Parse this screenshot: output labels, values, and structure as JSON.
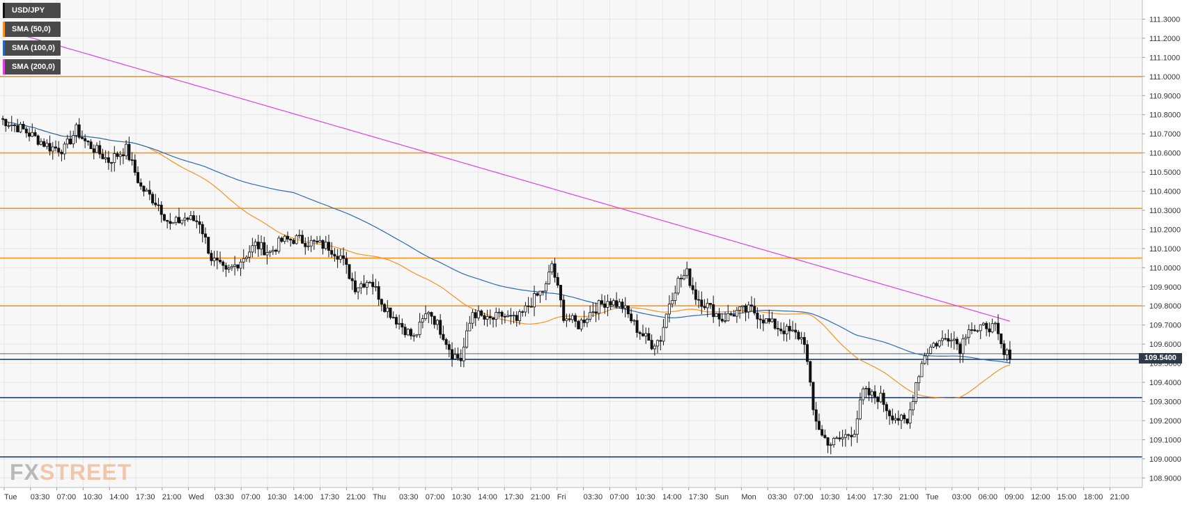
{
  "chart_data": {
    "type": "candlestick",
    "symbol": "USD/JPY",
    "indicators": [
      {
        "name": "SMA (50,0)",
        "color": "#f7931e"
      },
      {
        "name": "SMA (100,0)",
        "color": "#2a6bb8"
      },
      {
        "name": "SMA (200,0)",
        "color": "#e040e0"
      }
    ],
    "ylim": [
      108.85,
      111.4
    ],
    "y_ticks": [
      "111.3000",
      "111.2000",
      "111.1000",
      "111.0000",
      "110.9000",
      "110.8000",
      "110.7000",
      "110.6000",
      "110.5000",
      "110.4000",
      "110.3000",
      "110.2000",
      "110.1000",
      "110.0000",
      "109.9000",
      "109.8000",
      "109.7000",
      "109.6000",
      "109.5000",
      "109.4000",
      "109.3000",
      "109.2000",
      "109.1000",
      "109.0000",
      "108.9000"
    ],
    "x_ticks": [
      "Tue",
      "03:30",
      "07:00",
      "10:30",
      "14:00",
      "17:30",
      "21:00",
      "Wed",
      "03:30",
      "07:00",
      "10:30",
      "14:00",
      "17:30",
      "21:00",
      "Thu",
      "03:30",
      "07:00",
      "10:30",
      "14:00",
      "17:30",
      "21:00",
      "Fri",
      "03:30",
      "07:00",
      "10:30",
      "14:00",
      "17:30",
      "Sun",
      "Mon",
      "03:30",
      "07:00",
      "10:30",
      "14:00",
      "17:30",
      "21:00",
      "Tue",
      "03:00",
      "06:00",
      "09:00",
      "12:00",
      "15:00",
      "18:00",
      "21:00"
    ],
    "current_price": "109.5400",
    "resistance_levels": [
      111.0,
      110.6,
      110.31,
      110.05,
      109.8
    ],
    "support_levels": [
      109.52,
      109.32,
      109.01
    ],
    "current_line": 109.55,
    "close_path": [
      [
        0,
        110.78
      ],
      [
        8,
        110.72
      ],
      [
        14,
        110.66
      ],
      [
        17,
        110.63
      ],
      [
        22,
        110.62
      ],
      [
        26,
        110.72
      ],
      [
        29,
        110.66
      ],
      [
        33,
        110.61
      ],
      [
        37,
        110.56
      ],
      [
        43,
        110.62
      ],
      [
        48,
        110.42
      ],
      [
        54,
        110.33
      ],
      [
        58,
        110.22
      ],
      [
        63,
        110.26
      ],
      [
        68,
        110.24
      ],
      [
        72,
        110.05
      ],
      [
        77,
        109.97
      ],
      [
        82,
        110.04
      ],
      [
        87,
        110.12
      ],
      [
        92,
        110.08
      ],
      [
        96,
        110.14
      ],
      [
        101,
        110.15
      ],
      [
        106,
        110.13
      ],
      [
        112,
        110.11
      ],
      [
        116,
        110.06
      ],
      [
        121,
        109.9
      ],
      [
        126,
        109.94
      ],
      [
        131,
        109.8
      ],
      [
        136,
        109.71
      ],
      [
        141,
        109.63
      ],
      [
        146,
        109.78
      ],
      [
        151,
        109.65
      ],
      [
        154,
        109.55
      ],
      [
        157,
        109.52
      ],
      [
        161,
        109.77
      ],
      [
        166,
        109.72
      ],
      [
        171,
        109.75
      ],
      [
        176,
        109.72
      ],
      [
        181,
        109.82
      ],
      [
        186,
        109.9
      ],
      [
        188,
        110.02
      ],
      [
        192,
        109.75
      ],
      [
        197,
        109.7
      ],
      [
        202,
        109.78
      ],
      [
        207,
        109.83
      ],
      [
        212,
        109.8
      ],
      [
        217,
        109.68
      ],
      [
        222,
        109.6
      ],
      [
        225,
        109.63
      ],
      [
        228,
        109.82
      ],
      [
        231,
        109.93
      ],
      [
        234,
        109.97
      ],
      [
        237,
        109.85
      ],
      [
        241,
        109.8
      ],
      [
        246,
        109.73
      ],
      [
        251,
        109.77
      ],
      [
        256,
        109.78
      ],
      [
        261,
        109.72
      ],
      [
        266,
        109.68
      ],
      [
        271,
        109.65
      ],
      [
        274,
        109.62
      ],
      [
        277,
        109.25
      ],
      [
        280,
        109.12
      ],
      [
        283,
        109.08
      ],
      [
        287,
        109.11
      ],
      [
        291,
        109.15
      ],
      [
        294,
        109.35
      ],
      [
        297,
        109.33
      ],
      [
        300,
        109.32
      ],
      [
        303,
        109.24
      ],
      [
        306,
        109.21
      ],
      [
        309,
        109.18
      ],
      [
        312,
        109.4
      ],
      [
        315,
        109.55
      ],
      [
        318,
        109.6
      ],
      [
        321,
        109.62
      ],
      [
        324,
        109.65
      ],
      [
        327,
        109.58
      ],
      [
        330,
        109.7
      ],
      [
        333,
        109.66
      ],
      [
        336,
        109.7
      ],
      [
        339,
        109.68
      ],
      [
        342,
        109.54
      ],
      [
        344,
        109.55
      ]
    ]
  }
}
